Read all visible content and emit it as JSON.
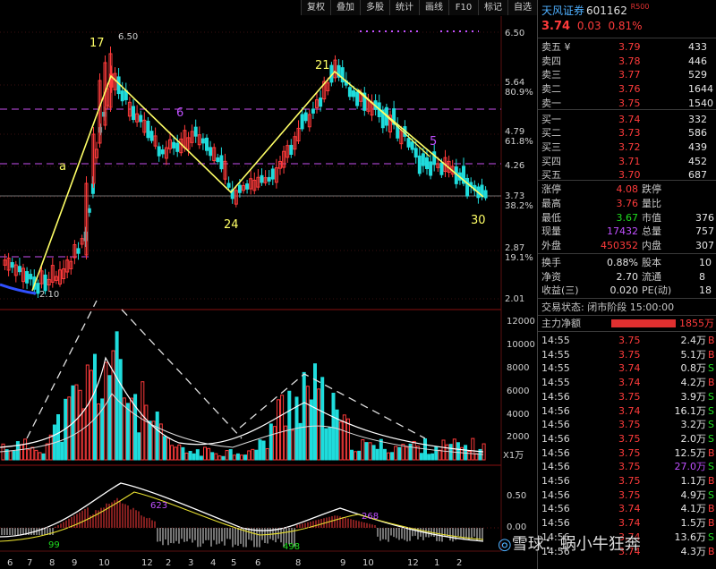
{
  "toolbar": [
    "复权",
    "叠加",
    "多股",
    "统计",
    "画线",
    "F10",
    "标记",
    "自选"
  ],
  "stock": {
    "name": "天风证券",
    "code": "601162",
    "badge": "R",
    "badge_num": "500",
    "price": "3.74",
    "change": "0.03",
    "pct": "0.81%"
  },
  "price_axis": {
    "labels": [
      {
        "v": "6.50",
        "pct": ""
      },
      {
        "v": "5.64",
        "pct": "80.9%"
      },
      {
        "v": "4.79",
        "pct": "61.8%"
      },
      {
        "v": "4.26",
        "pct": ""
      },
      {
        "v": "3.73",
        "pct": "38.2%"
      },
      {
        "v": "2.87",
        "pct": "19.1%"
      },
      {
        "v": "2.01",
        "pct": ""
      }
    ]
  },
  "vol_axis": [
    "12000",
    "10000",
    "8000",
    "6000",
    "4000",
    "2000"
  ],
  "vol_unit": "X1万",
  "macd_axis": [
    "0.50",
    "0.00"
  ],
  "date_ticks": [
    "6",
    "7",
    "8",
    "9",
    "10",
    "12",
    "2",
    "3",
    "4",
    "5",
    "6",
    "8",
    "9",
    "10",
    "12",
    "1",
    "2"
  ],
  "annotations": {
    "high_label": "6.50",
    "low_label": "2.10",
    "w17": "17",
    "w6": "6",
    "w24": "24",
    "w21": "21",
    "w5": "5",
    "w30": "30",
    "a": "a",
    "macd_a": "99",
    "macd_b": "623",
    "macd_c": "498",
    "macd_d": "268"
  },
  "order_book": [
    {
      "label": "卖五 ¥",
      "price": "3.79",
      "vol": "433"
    },
    {
      "label": "卖四",
      "price": "3.78",
      "vol": "446"
    },
    {
      "label": "卖三",
      "price": "3.77",
      "vol": "529"
    },
    {
      "label": "卖二",
      "price": "3.76",
      "vol": "1644"
    },
    {
      "label": "卖一",
      "price": "3.75",
      "vol": "1540"
    },
    {
      "label": "买一",
      "price": "3.74",
      "vol": "332"
    },
    {
      "label": "买二",
      "price": "3.73",
      "vol": "586"
    },
    {
      "label": "买三",
      "price": "3.72",
      "vol": "439"
    },
    {
      "label": "买四",
      "price": "3.71",
      "vol": "452"
    },
    {
      "label": "买五",
      "price": "3.70",
      "vol": "687"
    }
  ],
  "quote": [
    {
      "l1": "涨停",
      "v1": "4.08",
      "l2": "跌停",
      "v2": ""
    },
    {
      "l1": "最高",
      "v1": "3.76",
      "l2": "量比",
      "v2": ""
    },
    {
      "l1": "最低",
      "v1": "3.67",
      "l2": "市值",
      "v2": "376"
    },
    {
      "l1": "现量",
      "v1": "17432",
      "l2": "总量",
      "v2": "757"
    },
    {
      "l1": "外盘",
      "v1": "450352",
      "l2": "内盘",
      "v2": "307"
    }
  ],
  "fund": [
    {
      "l1": "换手",
      "v1": "0.88%",
      "l2": "股本",
      "v2": "10"
    },
    {
      "l1": "净资",
      "v1": "2.70",
      "l2": "流通",
      "v2": "8"
    },
    {
      "l1": "收益(三)",
      "v1": "0.020",
      "l2": "PE(动)",
      "v2": "18"
    }
  ],
  "trade_status": "交易状态: 闭市阶段 15:00:00",
  "main_fund": {
    "label": "主力净额",
    "value": "1855万"
  },
  "ticks": [
    {
      "t": "14:55",
      "p": "3.75",
      "v": "2.4万",
      "s": "B"
    },
    {
      "t": "14:55",
      "p": "3.75",
      "v": "5.1万",
      "s": "B"
    },
    {
      "t": "14:55",
      "p": "3.74",
      "v": "0.8万",
      "s": "S"
    },
    {
      "t": "14:55",
      "p": "3.74",
      "v": "4.2万",
      "s": "B"
    },
    {
      "t": "14:56",
      "p": "3.75",
      "v": "3.9万",
      "s": "S"
    },
    {
      "t": "14:56",
      "p": "3.74",
      "v": "16.1万",
      "s": "S"
    },
    {
      "t": "14:56",
      "p": "3.75",
      "v": "3.2万",
      "s": "S"
    },
    {
      "t": "14:56",
      "p": "3.75",
      "v": "2.0万",
      "s": "S"
    },
    {
      "t": "14:56",
      "p": "3.75",
      "v": "12.5万",
      "s": "B"
    },
    {
      "t": "14:56",
      "p": "3.75",
      "v": "27.0万",
      "s": "S"
    },
    {
      "t": "14:56",
      "p": "3.75",
      "v": "1.1万",
      "s": "B"
    },
    {
      "t": "14:56",
      "p": "3.75",
      "v": "4.9万",
      "s": "S"
    },
    {
      "t": "14:56",
      "p": "3.74",
      "v": "4.1万",
      "s": "B"
    },
    {
      "t": "14:56",
      "p": "3.74",
      "v": "1.5万",
      "s": "B"
    },
    {
      "t": "14:56",
      "p": "3.74",
      "v": "13.6万",
      "s": "S"
    },
    {
      "t": "14:56",
      "p": "3.74",
      "v": "4.3万",
      "s": "B"
    }
  ],
  "watermark": "雪球：蜗小牛狂奔",
  "colors": {
    "up": "#ff3b3b",
    "down": "#1fdcdc",
    "bg": "#000000",
    "line": "#ffff66"
  }
}
